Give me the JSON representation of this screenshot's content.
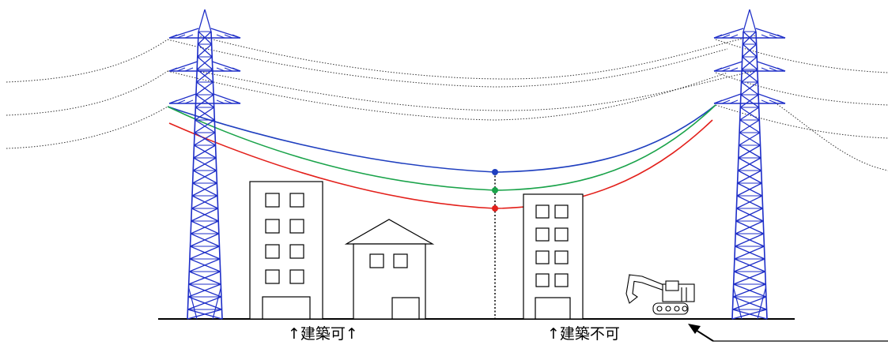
{
  "labels": {
    "buildable": "↑建築可↑",
    "not_buildable": "↑建築不可"
  },
  "colors": {
    "tower": "#1f2fc8",
    "wire_normal": "#1f3fbf",
    "wire_sag_mid": "#1aa34a",
    "wire_sag_max": "#e3201b",
    "outline": "#000000"
  }
}
